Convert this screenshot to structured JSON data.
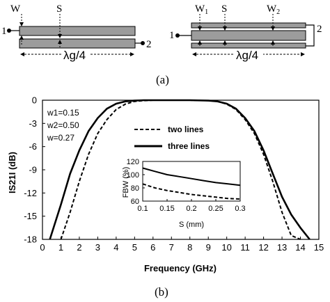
{
  "top_diagram": {
    "left": {
      "w_label": "W",
      "s_label": "S",
      "port1": "1",
      "port2": "2",
      "length_label": "λg/4"
    },
    "right": {
      "w1_label": "W1",
      "s_label": "S",
      "w2_label": "W2",
      "port1": "1",
      "port2": "2",
      "length_label": "λg/4"
    },
    "caption": "(a)"
  },
  "bottom_caption": "(b)",
  "params": [
    "w1=0.15",
    "w2=0.50",
    "w=0.27"
  ],
  "chart_data": [
    {
      "type": "line",
      "xlabel": "Frequency (GHz)",
      "ylabel": "IS21I (dB)",
      "xlim": [
        0,
        15
      ],
      "ylim": [
        -18,
        0
      ],
      "xticks": [
        0,
        1,
        2,
        3,
        4,
        5,
        6,
        7,
        8,
        9,
        10,
        11,
        12,
        13,
        14,
        15
      ],
      "yticks": [
        0,
        -3,
        -6,
        -9,
        -12,
        -15,
        -18
      ],
      "grid": false,
      "legend_placement": "upper-center",
      "series": [
        {
          "name": "two lines",
          "style": "dashed",
          "x": [
            1.0,
            1.5,
            2.0,
            2.5,
            3.0,
            3.5,
            4.0,
            4.5,
            5.0,
            5.5,
            6.0,
            7.0,
            8.0,
            9.0,
            9.5,
            10.0,
            10.5,
            11.0,
            11.5,
            12.0,
            12.5,
            13.0,
            13.5,
            14.0
          ],
          "y": [
            -18.0,
            -14.5,
            -10.5,
            -7.0,
            -4.3,
            -2.5,
            -1.2,
            -0.5,
            -0.15,
            -0.05,
            0,
            0,
            0,
            -0.05,
            -0.15,
            -0.5,
            -1.2,
            -2.5,
            -4.3,
            -7.0,
            -10.5,
            -14.5,
            -17.5,
            -18.0
          ]
        },
        {
          "name": "three lines",
          "style": "solid",
          "x": [
            0.4,
            1.0,
            1.5,
            2.0,
            2.5,
            3.0,
            3.5,
            4.0,
            4.5,
            5.0,
            5.5,
            6.0,
            7.0,
            8.0,
            9.0,
            9.5,
            10.0,
            10.5,
            11.0,
            11.5,
            12.0,
            12.5,
            13.0,
            13.5,
            14.0,
            14.5
          ],
          "y": [
            -18.0,
            -13.5,
            -9.5,
            -6.5,
            -4.0,
            -2.3,
            -1.1,
            -0.45,
            -0.15,
            -0.05,
            0,
            0,
            0,
            0,
            -0.05,
            -0.15,
            -0.45,
            -1.1,
            -2.3,
            -4.0,
            -6.5,
            -9.5,
            -12.5,
            -14.8,
            -16.5,
            -18.0
          ]
        }
      ]
    },
    {
      "type": "line",
      "xlabel": "S (mm)",
      "ylabel": "FBW (%)",
      "xlim": [
        0.1,
        0.3
      ],
      "ylim": [
        60,
        120
      ],
      "xticks": [
        "0.1",
        "0.15",
        "0.2",
        "0.25",
        "0.3"
      ],
      "yticks": [
        60,
        80,
        100,
        120
      ],
      "grid": false,
      "series": [
        {
          "name": "two lines",
          "style": "dashed",
          "x": [
            0.1,
            0.125,
            0.15,
            0.175,
            0.2,
            0.225,
            0.25,
            0.275,
            0.3
          ],
          "y": [
            86,
            80,
            76,
            73,
            70,
            68,
            66,
            64,
            63
          ]
        },
        {
          "name": "three lines",
          "style": "solid",
          "x": [
            0.1,
            0.125,
            0.15,
            0.175,
            0.2,
            0.225,
            0.25,
            0.275,
            0.3
          ],
          "y": [
            110,
            105,
            100,
            97,
            94,
            91,
            88,
            86,
            84
          ]
        }
      ]
    }
  ]
}
